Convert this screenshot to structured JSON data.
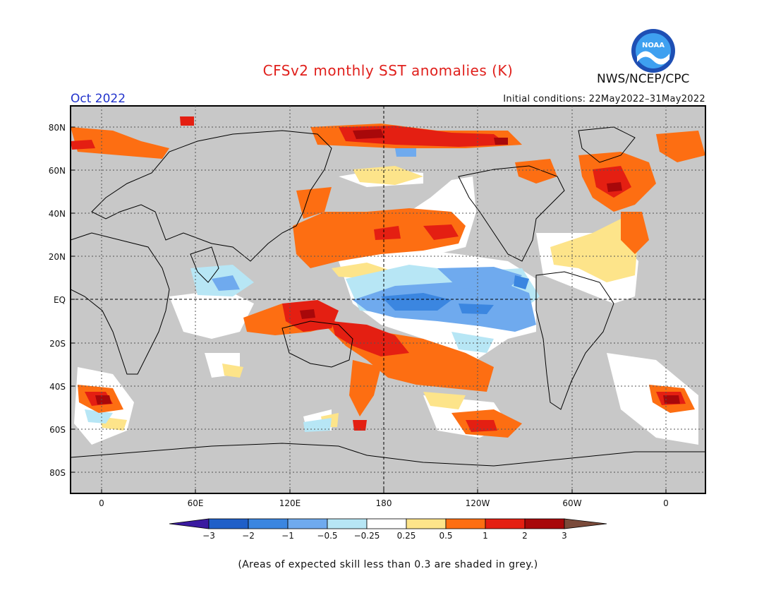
{
  "header": {
    "title": "CFSv2 monthly SST anomalies (K)",
    "org": "NWS/NCEP/CPC",
    "logo_text": "NOAA",
    "valid_month": "Oct 2022",
    "initial_conditions": "Initial conditions: 22May2022–31May2022"
  },
  "map": {
    "lat_labels": [
      "80N",
      "60N",
      "40N",
      "20N",
      "EQ",
      "20S",
      "40S",
      "60S",
      "80S"
    ],
    "lon_labels": [
      "0",
      "60E",
      "120E",
      "180",
      "120W",
      "60W",
      "0"
    ],
    "land_color": "#c8c8c8",
    "skill_grey": "#c8c8c8"
  },
  "colorbar": {
    "tick_labels": [
      "−3",
      "−2",
      "−1",
      "−0.5",
      "−0.25",
      "0.25",
      "0.5",
      "1",
      "2",
      "3"
    ],
    "colors": [
      "#3a1aa0",
      "#1f5fc8",
      "#3b86e0",
      "#6faaee",
      "#b7e6f5",
      "#ffffff",
      "#fde48a",
      "#fd6e12",
      "#e41f12",
      "#a8080a",
      "#7a4a3a"
    ]
  },
  "footer": {
    "note": "(Areas of expected skill less than 0.3 are shaded in grey.)"
  }
}
